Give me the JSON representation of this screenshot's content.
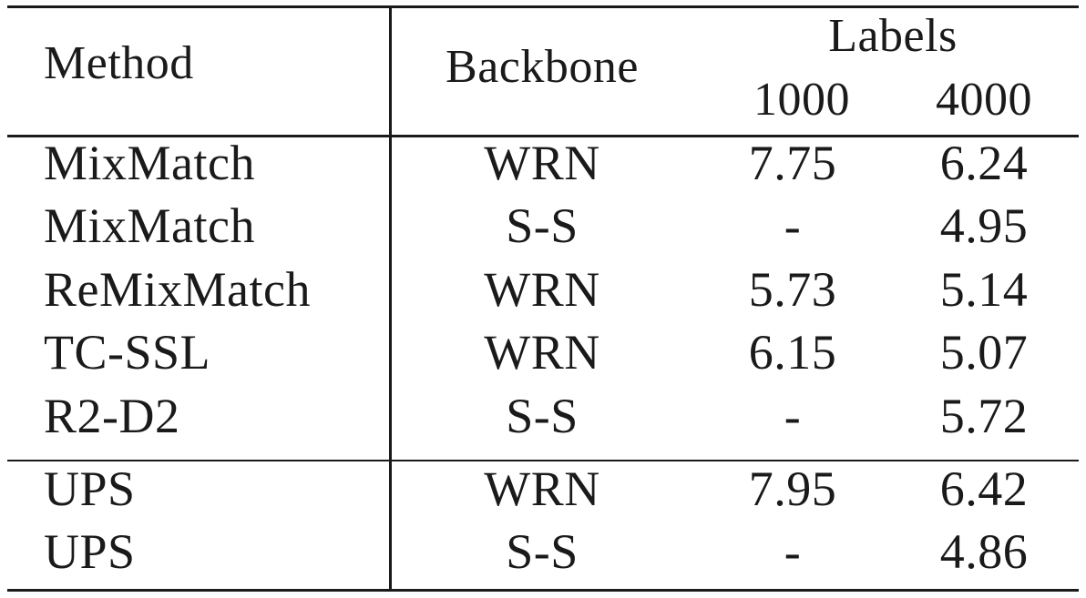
{
  "table": {
    "headers": {
      "method": "Method",
      "backbone": "Backbone",
      "labels_group": "Labels",
      "col_1000": "1000",
      "col_4000": "4000"
    },
    "rows": [
      {
        "method": "MixMatch",
        "backbone": "WRN",
        "v1000": "7.75",
        "v4000": "6.24"
      },
      {
        "method": "MixMatch",
        "backbone": "S-S",
        "v1000": "-",
        "v4000": "4.95"
      },
      {
        "method": "ReMixMatch",
        "backbone": "WRN",
        "v1000": "5.73",
        "v4000": "5.14"
      },
      {
        "method": "TC-SSL",
        "backbone": "WRN",
        "v1000": "6.15",
        "v4000": "5.07"
      },
      {
        "method": "R2-D2",
        "backbone": "S-S",
        "v1000": "-",
        "v4000": "5.72"
      },
      {
        "method": "UPS",
        "backbone": "WRN",
        "v1000": "7.95",
        "v4000": "6.42"
      },
      {
        "method": "UPS",
        "backbone": "S-S",
        "v1000": "-",
        "v4000": "4.86"
      }
    ]
  }
}
